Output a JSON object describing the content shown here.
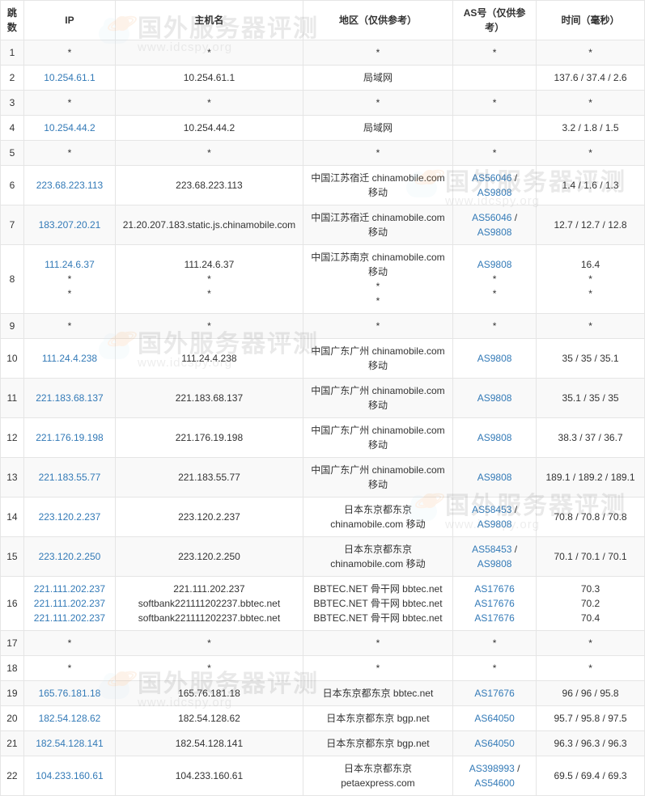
{
  "headers": {
    "hop": "跳数",
    "ip": "IP",
    "host": "主机名",
    "region": "地区（仅供参考）",
    "asn": "AS号（仅供参考）",
    "time": "时间（毫秒）"
  },
  "link_color": "#337ab7",
  "border_color": "#e5e5e5",
  "row_stripe_color": "#f9f9f9",
  "watermark": {
    "main": "国外服务器评测",
    "sub": "www.idcspy.org"
  },
  "rows": [
    {
      "hop": "1",
      "ip": [
        "*"
      ],
      "host": [
        "*"
      ],
      "region": [
        "*"
      ],
      "asn": [
        "*"
      ],
      "time": [
        "*"
      ],
      "plain": true
    },
    {
      "hop": "2",
      "ip": [
        "10.254.61.1"
      ],
      "host": [
        "10.254.61.1"
      ],
      "region": [
        "局域网"
      ],
      "asn": [
        ""
      ],
      "time": [
        "137.6 / 37.4 / 2.6"
      ]
    },
    {
      "hop": "3",
      "ip": [
        "*"
      ],
      "host": [
        "*"
      ],
      "region": [
        "*"
      ],
      "asn": [
        "*"
      ],
      "time": [
        "*"
      ],
      "plain": true
    },
    {
      "hop": "4",
      "ip": [
        "10.254.44.2"
      ],
      "host": [
        "10.254.44.2"
      ],
      "region": [
        "局域网"
      ],
      "asn": [
        ""
      ],
      "time": [
        "3.2 / 1.8 / 1.5"
      ]
    },
    {
      "hop": "5",
      "ip": [
        "*"
      ],
      "host": [
        "*"
      ],
      "region": [
        "*"
      ],
      "asn": [
        "*"
      ],
      "time": [
        "*"
      ],
      "plain": true
    },
    {
      "hop": "6",
      "ip": [
        "223.68.223.113"
      ],
      "host": [
        "223.68.223.113"
      ],
      "region": [
        "中国江苏宿迁 chinamobile.com 移动"
      ],
      "asn": [
        "AS56046 / AS9808"
      ],
      "time": [
        "1.4 / 1.6 / 1.3"
      ]
    },
    {
      "hop": "7",
      "ip": [
        "183.207.20.21"
      ],
      "host": [
        "21.20.207.183.static.js.chinamobile.com"
      ],
      "region": [
        "中国江苏宿迁 chinamobile.com 移动"
      ],
      "asn": [
        "AS56046 / AS9808"
      ],
      "time": [
        "12.7 / 12.7 / 12.8"
      ]
    },
    {
      "hop": "8",
      "ip": [
        "111.24.6.37",
        "*",
        "*"
      ],
      "host": [
        "111.24.6.37",
        "*",
        "*"
      ],
      "region": [
        "中国江苏南京 chinamobile.com 移动",
        "*",
        "*"
      ],
      "asn": [
        "AS9808",
        "*",
        "*"
      ],
      "time": [
        "16.4",
        "*",
        "*"
      ]
    },
    {
      "hop": "9",
      "ip": [
        "*"
      ],
      "host": [
        "*"
      ],
      "region": [
        "*"
      ],
      "asn": [
        "*"
      ],
      "time": [
        "*"
      ],
      "plain": true
    },
    {
      "hop": "10",
      "ip": [
        "111.24.4.238"
      ],
      "host": [
        "111.24.4.238"
      ],
      "region": [
        "中国广东广州 chinamobile.com 移动"
      ],
      "asn": [
        "AS9808"
      ],
      "time": [
        "35 / 35 / 35.1"
      ]
    },
    {
      "hop": "11",
      "ip": [
        "221.183.68.137"
      ],
      "host": [
        "221.183.68.137"
      ],
      "region": [
        "中国广东广州 chinamobile.com 移动"
      ],
      "asn": [
        "AS9808"
      ],
      "time": [
        "35.1 / 35 / 35"
      ]
    },
    {
      "hop": "12",
      "ip": [
        "221.176.19.198"
      ],
      "host": [
        "221.176.19.198"
      ],
      "region": [
        "中国广东广州 chinamobile.com 移动"
      ],
      "asn": [
        "AS9808"
      ],
      "time": [
        "38.3 / 37 / 36.7"
      ]
    },
    {
      "hop": "13",
      "ip": [
        "221.183.55.77"
      ],
      "host": [
        "221.183.55.77"
      ],
      "region": [
        "中国广东广州 chinamobile.com 移动"
      ],
      "asn": [
        "AS9808"
      ],
      "time": [
        "189.1 / 189.2 / 189.1"
      ]
    },
    {
      "hop": "14",
      "ip": [
        "223.120.2.237"
      ],
      "host": [
        "223.120.2.237"
      ],
      "region": [
        "日本东京都东京 chinamobile.com 移动"
      ],
      "asn": [
        "AS58453 / AS9808"
      ],
      "time": [
        "70.8 / 70.8 / 70.8"
      ]
    },
    {
      "hop": "15",
      "ip": [
        "223.120.2.250"
      ],
      "host": [
        "223.120.2.250"
      ],
      "region": [
        "日本东京都东京 chinamobile.com 移动"
      ],
      "asn": [
        "AS58453 / AS9808"
      ],
      "time": [
        "70.1 / 70.1 / 70.1"
      ]
    },
    {
      "hop": "16",
      "ip": [
        "221.111.202.237",
        "221.111.202.237",
        "221.111.202.237"
      ],
      "host": [
        "221.111.202.237",
        "softbank221111202237.bbtec.net",
        "softbank221111202237.bbtec.net"
      ],
      "region": [
        "BBTEC.NET 骨干网 bbtec.net",
        "BBTEC.NET 骨干网 bbtec.net",
        "BBTEC.NET 骨干网 bbtec.net"
      ],
      "asn": [
        "AS17676",
        "AS17676",
        "AS17676"
      ],
      "time": [
        "70.3",
        "70.2",
        "70.4"
      ]
    },
    {
      "hop": "17",
      "ip": [
        "*"
      ],
      "host": [
        "*"
      ],
      "region": [
        "*"
      ],
      "asn": [
        "*"
      ],
      "time": [
        "*"
      ],
      "plain": true
    },
    {
      "hop": "18",
      "ip": [
        "*"
      ],
      "host": [
        "*"
      ],
      "region": [
        "*"
      ],
      "asn": [
        "*"
      ],
      "time": [
        "*"
      ],
      "plain": true
    },
    {
      "hop": "19",
      "ip": [
        "165.76.181.18"
      ],
      "host": [
        "165.76.181.18"
      ],
      "region": [
        "日本东京都东京 bbtec.net"
      ],
      "asn": [
        "AS17676"
      ],
      "time": [
        "96 / 96 / 95.8"
      ]
    },
    {
      "hop": "20",
      "ip": [
        "182.54.128.62"
      ],
      "host": [
        "182.54.128.62"
      ],
      "region": [
        "日本东京都东京 bgp.net"
      ],
      "asn": [
        "AS64050"
      ],
      "time": [
        "95.7 / 95.8 / 97.5"
      ]
    },
    {
      "hop": "21",
      "ip": [
        "182.54.128.141"
      ],
      "host": [
        "182.54.128.141"
      ],
      "region": [
        "日本东京都东京 bgp.net"
      ],
      "asn": [
        "AS64050"
      ],
      "time": [
        "96.3 / 96.3 / 96.3"
      ]
    },
    {
      "hop": "22",
      "ip": [
        "104.233.160.61"
      ],
      "host": [
        "104.233.160.61"
      ],
      "region": [
        "日本东京都东京 petaexpress.com"
      ],
      "asn": [
        "AS398993 / AS54600"
      ],
      "time": [
        "69.5 / 69.4 / 69.3"
      ]
    }
  ]
}
